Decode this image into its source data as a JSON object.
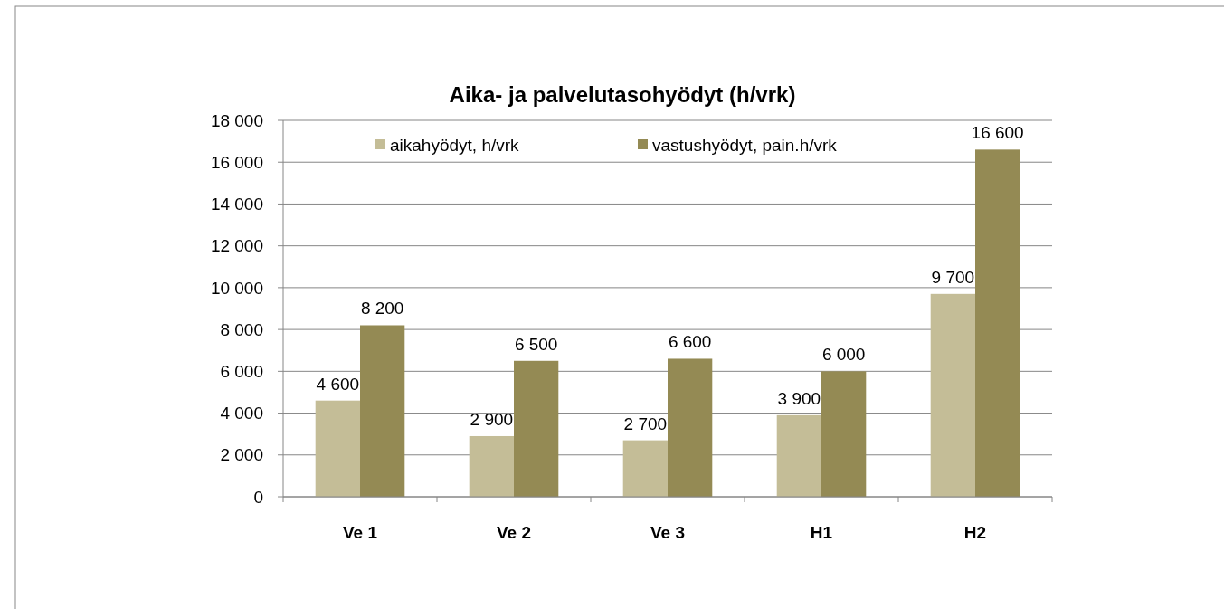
{
  "chart_data": {
    "type": "bar",
    "title": "Aika- ja palvelutasohyödyt  (h/vrk)",
    "categories": [
      "Ve 1",
      "Ve 2",
      "Ve 3",
      "H1",
      "H2"
    ],
    "series": [
      {
        "name": "aikahyödyt, h/vrk",
        "color": "#c4bd97",
        "values": [
          4600,
          2900,
          2700,
          3900,
          9700
        ],
        "value_labels": [
          "4 600",
          "2 900",
          "2 700",
          "3 900",
          "9 700"
        ]
      },
      {
        "name": "vastushyödyt, pain.h/vrk",
        "color": "#948a54",
        "values": [
          8200,
          6500,
          6600,
          6000,
          16600
        ],
        "value_labels": [
          "8 200",
          "6 500",
          "6 600",
          "6 000",
          "16 600"
        ]
      }
    ],
    "ylim": [
      0,
      18000
    ],
    "yticks": [
      0,
      {
        "value": 2000,
        "label": "2 000"
      },
      {
        "value": 4000,
        "label": "4 000"
      },
      {
        "value": 6000,
        "label": "6 000"
      },
      {
        "value": 8000,
        "label": "8 000"
      },
      {
        "value": 10000,
        "label": "10 000"
      },
      {
        "value": 12000,
        "label": "12 000"
      },
      {
        "value": 14000,
        "label": "14 000"
      },
      {
        "value": 16000,
        "label": "16 000"
      },
      {
        "value": 18000,
        "label": "18 000"
      }
    ],
    "grid": "y",
    "legend": "top"
  }
}
